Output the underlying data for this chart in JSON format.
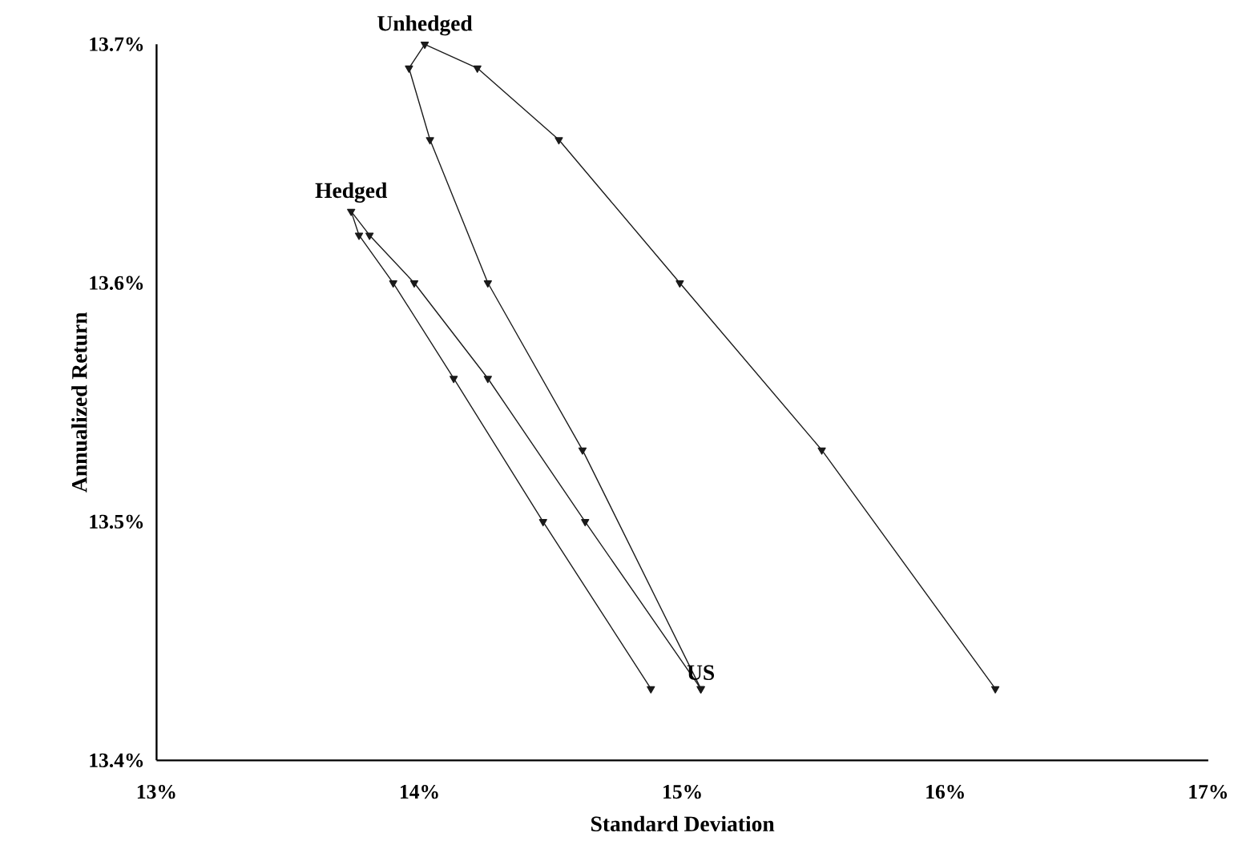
{
  "chart_data": {
    "type": "line",
    "xlabel": "Standard Deviation",
    "ylabel": "Annualized Return",
    "xlim": [
      13,
      17
    ],
    "ylim": [
      13.4,
      13.7
    ],
    "xticks": [
      {
        "value": 13,
        "label": "13%"
      },
      {
        "value": 14,
        "label": "14%"
      },
      {
        "value": 15,
        "label": "15%"
      },
      {
        "value": 16,
        "label": "16%"
      },
      {
        "value": 17,
        "label": "17%"
      }
    ],
    "yticks": [
      {
        "value": 13.4,
        "label": "13.4%"
      },
      {
        "value": 13.5,
        "label": "13.5%"
      },
      {
        "value": 13.6,
        "label": "13.6%"
      },
      {
        "value": 13.7,
        "label": "13.7%"
      }
    ],
    "grid": false,
    "marker": "triangle",
    "line_style": "solid",
    "series": [
      {
        "color": "#1a1a1a",
        "x": [
          15.07,
          14.62,
          14.26,
          14.04,
          13.96,
          14.02,
          14.22,
          14.53,
          14.99,
          15.53,
          16.19
        ],
        "values": [
          13.43,
          13.53,
          13.6,
          13.66,
          13.69,
          13.7,
          13.69,
          13.66,
          13.6,
          13.53,
          13.43
        ]
      },
      {
        "color": "#1a1a1a",
        "x": [
          15.07,
          14.63,
          14.26,
          13.98,
          13.81,
          13.74,
          13.77,
          13.9,
          14.13,
          14.47,
          14.88
        ],
        "values": [
          13.43,
          13.5,
          13.56,
          13.6,
          13.62,
          13.63,
          13.62,
          13.6,
          13.56,
          13.5,
          13.43
        ]
      }
    ],
    "annotations": [
      {
        "text": "Unhedged",
        "x": 14.02,
        "y": 13.7
      },
      {
        "text": "Hedged",
        "x": 13.74,
        "y": 13.63
      },
      {
        "text": "US",
        "x": 15.07,
        "y": 13.43
      }
    ]
  }
}
